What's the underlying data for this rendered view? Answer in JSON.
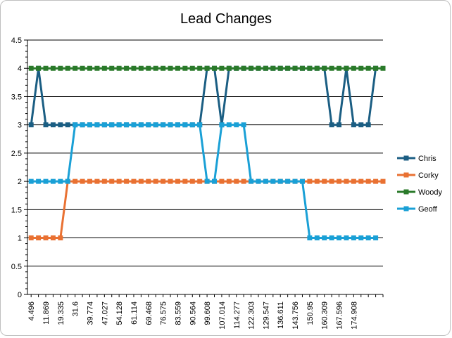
{
  "chart_data": {
    "type": "line",
    "title": "Lead Changes",
    "xlabel": "",
    "ylabel": "",
    "ylim": [
      0,
      4.5
    ],
    "y_ticks": [
      "0",
      "0.5",
      "1",
      "1.5",
      "2",
      "2.5",
      "3",
      "3.5",
      "4",
      "4.5"
    ],
    "x_tick_labels": [
      "4.496",
      "11.869",
      "19.335",
      "31.6",
      "39.774",
      "47.027",
      "54.128",
      "61.114",
      "69.468",
      "76.575",
      "83.559",
      "90.564",
      "99.608",
      "107.014",
      "114.277",
      "122.303",
      "129.547",
      "136.611",
      "143.756",
      "150.95",
      "160.309",
      "167.596",
      "174.908"
    ],
    "x_count": 49,
    "grid": "horizontal",
    "legend_position": "right",
    "series": [
      {
        "name": "Chris",
        "color": "#1b5e83",
        "marker": "square",
        "values": [
          3,
          4,
          3,
          3,
          3,
          3,
          3,
          3,
          3,
          3,
          3,
          3,
          3,
          3,
          3,
          3,
          3,
          3,
          3,
          3,
          3,
          3,
          3,
          3,
          4,
          4,
          3,
          4,
          4,
          4,
          4,
          4,
          4,
          4,
          4,
          4,
          4,
          4,
          4,
          4,
          4,
          3,
          3,
          4,
          3,
          3,
          3,
          4,
          null
        ]
      },
      {
        "name": "Corky",
        "color": "#e97132",
        "marker": "square",
        "values": [
          1,
          1,
          1,
          1,
          1,
          2,
          2,
          2,
          2,
          2,
          2,
          2,
          2,
          2,
          2,
          2,
          2,
          2,
          2,
          2,
          2,
          2,
          2,
          2,
          2,
          2,
          2,
          2,
          2,
          2,
          2,
          2,
          2,
          2,
          2,
          2,
          2,
          2,
          2,
          2,
          2,
          2,
          2,
          2,
          2,
          2,
          2,
          2,
          2
        ]
      },
      {
        "name": "Woody",
        "color": "#2a7a2a",
        "marker": "square",
        "values": [
          4,
          4,
          4,
          4,
          4,
          4,
          4,
          4,
          4,
          4,
          4,
          4,
          4,
          4,
          4,
          4,
          4,
          4,
          4,
          4,
          4,
          4,
          4,
          4,
          4,
          4,
          4,
          4,
          4,
          4,
          4,
          4,
          4,
          4,
          4,
          4,
          4,
          4,
          4,
          4,
          4,
          4,
          4,
          4,
          4,
          4,
          4,
          4,
          4
        ]
      },
      {
        "name": "Geoff",
        "color": "#1aa0d6",
        "marker": "square",
        "values": [
          2,
          2,
          2,
          2,
          2,
          2,
          3,
          3,
          3,
          3,
          3,
          3,
          3,
          3,
          3,
          3,
          3,
          3,
          3,
          3,
          3,
          3,
          3,
          3,
          2,
          2,
          3,
          3,
          3,
          3,
          2,
          2,
          2,
          2,
          2,
          2,
          2,
          2,
          1,
          1,
          1,
          1,
          1,
          1,
          1,
          1,
          1,
          1,
          null
        ]
      }
    ]
  }
}
